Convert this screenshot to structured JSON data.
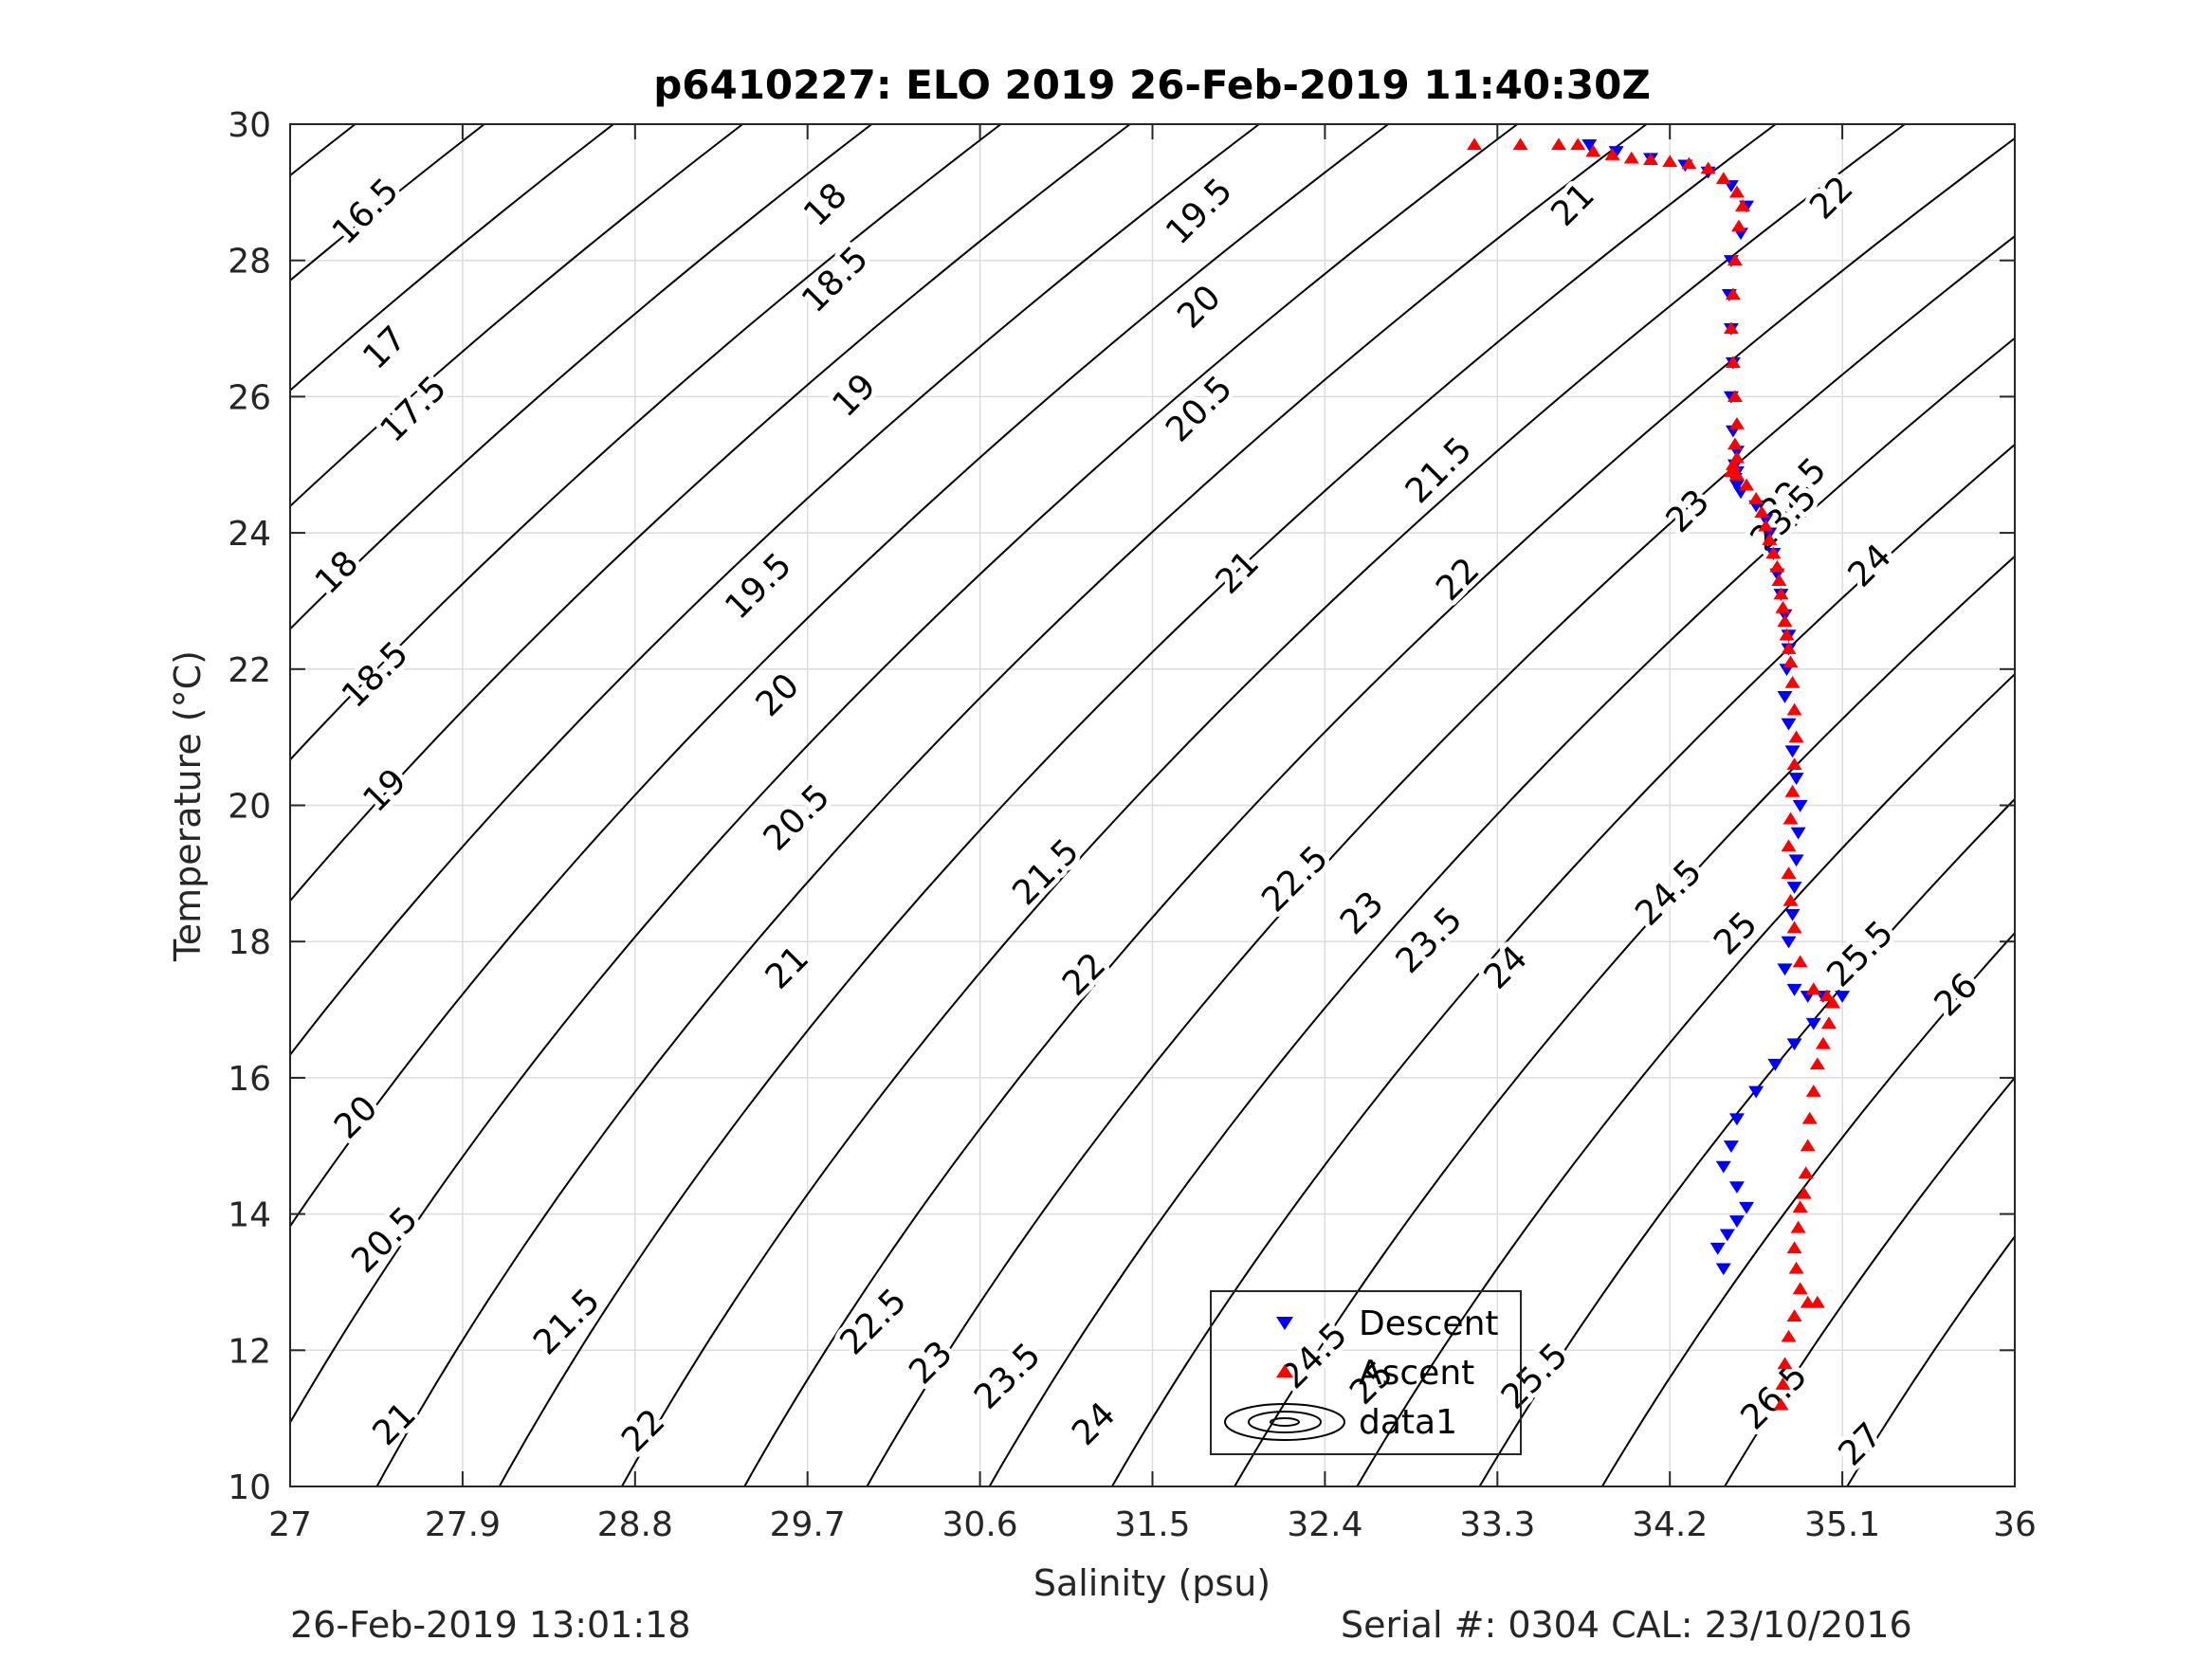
{
  "chart_data": {
    "type": "scatter",
    "title": "p6410227: ELO 2019 26-Feb-2019 11:40:30Z",
    "xlabel": "Salinity (psu)",
    "ylabel": "Temperature (°C)",
    "xlim": [
      27,
      36
    ],
    "ylim": [
      10,
      30
    ],
    "xticks": [
      "27",
      "27.9",
      "28.8",
      "29.7",
      "30.6",
      "31.5",
      "32.4",
      "33.3",
      "34.2",
      "35.1",
      "36"
    ],
    "yticks": [
      "10",
      "12",
      "14",
      "16",
      "18",
      "20",
      "22",
      "24",
      "26",
      "28",
      "30"
    ],
    "grid": true,
    "legend": {
      "position": "bottom-center",
      "entries": [
        "Descent",
        "Ascent",
        "data1"
      ]
    },
    "colors": {
      "descent": "#0000ff",
      "ascent": "#ff0000",
      "contour": "#000000",
      "grid": "#dcdcdc"
    },
    "series": [
      {
        "name": "Descent",
        "marker": "triangle-down",
        "x": [
          33.78,
          33.92,
          34.1,
          34.28,
          34.4,
          34.52,
          34.6,
          34.57,
          34.52,
          34.51,
          34.52,
          34.53,
          34.52,
          34.53,
          34.55,
          34.54,
          34.55,
          34.54,
          34.55,
          34.57,
          34.65,
          34.7,
          34.72,
          34.74,
          34.76,
          34.78,
          34.8,
          34.82,
          34.82,
          34.81,
          34.8,
          34.82,
          34.84,
          34.86,
          34.88,
          34.87,
          34.86,
          34.85,
          34.84,
          34.82,
          34.8,
          34.85,
          34.92,
          35.0,
          35.1,
          34.95,
          34.85,
          34.75,
          34.65,
          34.55,
          34.52,
          34.48,
          34.55,
          34.6,
          34.55,
          34.5,
          34.45,
          34.48
        ],
        "y": [
          29.7,
          29.6,
          29.5,
          29.4,
          29.3,
          29.1,
          28.8,
          28.4,
          28.0,
          27.5,
          27.0,
          26.5,
          26.0,
          25.5,
          25.2,
          25.0,
          24.9,
          24.8,
          24.7,
          24.6,
          24.4,
          24.2,
          24.0,
          23.7,
          23.4,
          23.1,
          22.8,
          22.5,
          22.3,
          22.0,
          21.6,
          21.2,
          20.8,
          20.4,
          20.0,
          19.6,
          19.2,
          18.8,
          18.4,
          18.0,
          17.6,
          17.3,
          17.2,
          17.2,
          17.2,
          16.8,
          16.5,
          16.2,
          15.8,
          15.4,
          15.0,
          14.7,
          14.4,
          14.1,
          13.9,
          13.7,
          13.5,
          13.2
        ]
      },
      {
        "name": "Ascent",
        "marker": "triangle-up",
        "x": [
          33.18,
          33.42,
          33.62,
          33.72,
          33.8,
          33.9,
          34.0,
          34.1,
          34.2,
          34.3,
          34.4,
          34.48,
          34.55,
          34.58,
          34.56,
          34.54,
          34.53,
          34.52,
          34.53,
          34.54,
          34.55,
          34.54,
          34.55,
          34.53,
          34.52,
          34.55,
          34.6,
          34.65,
          34.68,
          34.7,
          34.72,
          34.74,
          34.76,
          34.77,
          34.78,
          34.79,
          34.8,
          34.81,
          34.82,
          34.83,
          34.84,
          34.85,
          34.86,
          34.85,
          34.84,
          34.83,
          34.82,
          34.82,
          34.83,
          34.85,
          34.88,
          34.95,
          35.02,
          35.05,
          35.03,
          35.0,
          34.97,
          34.95,
          34.93,
          34.92,
          34.91,
          34.9,
          34.88,
          34.87,
          34.85,
          34.86,
          34.88,
          34.92,
          34.97,
          34.85,
          34.82,
          34.8,
          34.79,
          34.78
        ],
        "y": [
          29.7,
          29.7,
          29.7,
          29.7,
          29.6,
          29.55,
          29.5,
          29.48,
          29.45,
          29.42,
          29.35,
          29.2,
          29.0,
          28.8,
          28.5,
          28.0,
          27.5,
          27.0,
          26.5,
          26.0,
          25.6,
          25.3,
          25.1,
          25.0,
          24.9,
          24.85,
          24.7,
          24.5,
          24.3,
          24.1,
          23.9,
          23.7,
          23.5,
          23.3,
          23.1,
          22.9,
          22.7,
          22.5,
          22.3,
          22.1,
          21.8,
          21.4,
          21.0,
          20.6,
          20.2,
          19.8,
          19.4,
          19.0,
          18.6,
          18.2,
          17.7,
          17.3,
          17.2,
          17.1,
          16.8,
          16.5,
          16.2,
          15.8,
          15.4,
          15.0,
          14.6,
          14.3,
          14.1,
          13.8,
          13.5,
          13.2,
          12.9,
          12.7,
          12.7,
          12.5,
          12.2,
          11.8,
          11.5,
          11.2
        ]
      }
    ],
    "contour_labels": [
      {
        "text": "16.5",
        "x": 27.4,
        "y": 28.7
      },
      {
        "text": "17",
        "x": 27.5,
        "y": 26.7
      },
      {
        "text": "17.5",
        "x": 27.65,
        "y": 25.8
      },
      {
        "text": "18",
        "x": 27.25,
        "y": 23.4
      },
      {
        "text": "18.5",
        "x": 27.45,
        "y": 21.9
      },
      {
        "text": "19",
        "x": 27.5,
        "y": 20.2
      },
      {
        "text": "20",
        "x": 27.35,
        "y": 15.4
      },
      {
        "text": "20.5",
        "x": 27.5,
        "y": 13.6
      },
      {
        "text": "21",
        "x": 27.55,
        "y": 10.9
      },
      {
        "text": "18",
        "x": 29.8,
        "y": 28.8
      },
      {
        "text": "18.5",
        "x": 29.85,
        "y": 27.7
      },
      {
        "text": "19",
        "x": 29.95,
        "y": 26.0
      },
      {
        "text": "19.5",
        "x": 29.45,
        "y": 23.2
      },
      {
        "text": "20",
        "x": 29.55,
        "y": 21.6
      },
      {
        "text": "20.5",
        "x": 29.65,
        "y": 19.8
      },
      {
        "text": "21",
        "x": 29.6,
        "y": 17.6
      },
      {
        "text": "21.5",
        "x": 28.45,
        "y": 12.4
      },
      {
        "text": "22",
        "x": 28.85,
        "y": 10.8
      },
      {
        "text": "19.5",
        "x": 31.75,
        "y": 28.7
      },
      {
        "text": "20",
        "x": 31.75,
        "y": 27.3
      },
      {
        "text": "20.5",
        "x": 31.75,
        "y": 25.8
      },
      {
        "text": "21",
        "x": 31.95,
        "y": 23.4
      },
      {
        "text": "21.5",
        "x": 30.95,
        "y": 19.0
      },
      {
        "text": "22",
        "x": 31.15,
        "y": 17.5
      },
      {
        "text": "22.5",
        "x": 30.05,
        "y": 12.4
      },
      {
        "text": "23",
        "x": 30.35,
        "y": 11.8
      },
      {
        "text": "23.5",
        "x": 30.75,
        "y": 11.6
      },
      {
        "text": "24",
        "x": 31.2,
        "y": 10.9
      },
      {
        "text": "21.5",
        "x": 33.0,
        "y": 24.9
      },
      {
        "text": "22",
        "x": 33.1,
        "y": 23.3
      },
      {
        "text": "22.5",
        "x": 32.25,
        "y": 18.9
      },
      {
        "text": "23",
        "x": 32.6,
        "y": 18.4
      },
      {
        "text": "23.5",
        "x": 32.95,
        "y": 18.0
      },
      {
        "text": "24",
        "x": 33.35,
        "y": 17.6
      },
      {
        "text": "24.5",
        "x": 32.35,
        "y": 11.9
      },
      {
        "text": "25",
        "x": 32.65,
        "y": 11.5
      },
      {
        "text": "25.5",
        "x": 33.5,
        "y": 11.6
      },
      {
        "text": "21",
        "x": 33.7,
        "y": 28.8
      },
      {
        "text": "22",
        "x": 35.05,
        "y": 28.9
      },
      {
        "text": "22.5",
        "x": 34.85,
        "y": 24.6
      },
      {
        "text": "23",
        "x": 34.3,
        "y": 24.3
      },
      {
        "text": "23.5",
        "x": 34.8,
        "y": 24.2
      },
      {
        "text": "24",
        "x": 35.25,
        "y": 23.5
      },
      {
        "text": "24.5",
        "x": 34.2,
        "y": 18.7
      },
      {
        "text": "25",
        "x": 34.55,
        "y": 18.1
      },
      {
        "text": "25.5",
        "x": 35.2,
        "y": 17.8
      },
      {
        "text": "26",
        "x": 35.7,
        "y": 17.2
      },
      {
        "text": "26.5",
        "x": 34.75,
        "y": 11.3
      },
      {
        "text": "27",
        "x": 35.2,
        "y": 10.6
      }
    ]
  },
  "footer": {
    "left": "26-Feb-2019 13:01:18",
    "right": "Serial #: 0304  CAL: 23/10/2016"
  }
}
